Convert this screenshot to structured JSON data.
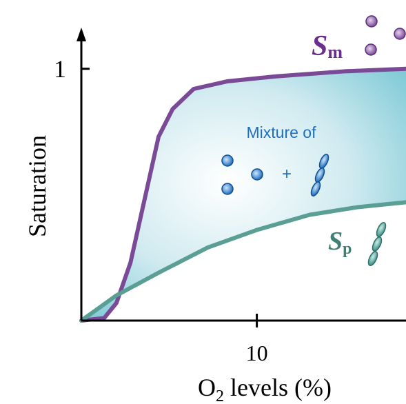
{
  "chart_data": {
    "type": "line",
    "y_label": "Saturation",
    "x_label": {
      "parts": [
        "O",
        "2",
        " levels (%)"
      ]
    },
    "annotation": {
      "mixture": "Mixture of",
      "plus": "+"
    },
    "xlim": [
      0,
      18.5
    ],
    "ylim": [
      0,
      1.15
    ],
    "xticks": [
      10
    ],
    "yticks": [
      1
    ],
    "series": [
      {
        "name": {
          "main": "S",
          "sub": "m"
        },
        "color": "#7a4a96",
        "x": [
          0,
          1.3,
          2.0,
          2.8,
          3.6,
          4.4,
          5.2,
          6.4,
          8.3,
          11.1,
          15.0,
          18.5
        ],
        "values": [
          0,
          0.01,
          0.07,
          0.23,
          0.48,
          0.73,
          0.84,
          0.92,
          0.95,
          0.97,
          0.99,
          1.0
        ]
      },
      {
        "name": {
          "main": "S",
          "sub": "p"
        },
        "color": "#5a9e94",
        "x": [
          0,
          2.0,
          4.4,
          7.2,
          10.0,
          13.0,
          15.7,
          18.5
        ],
        "values": [
          0,
          0.1,
          0.19,
          0.29,
          0.36,
          0.42,
          0.45,
          0.47
        ]
      }
    ]
  }
}
